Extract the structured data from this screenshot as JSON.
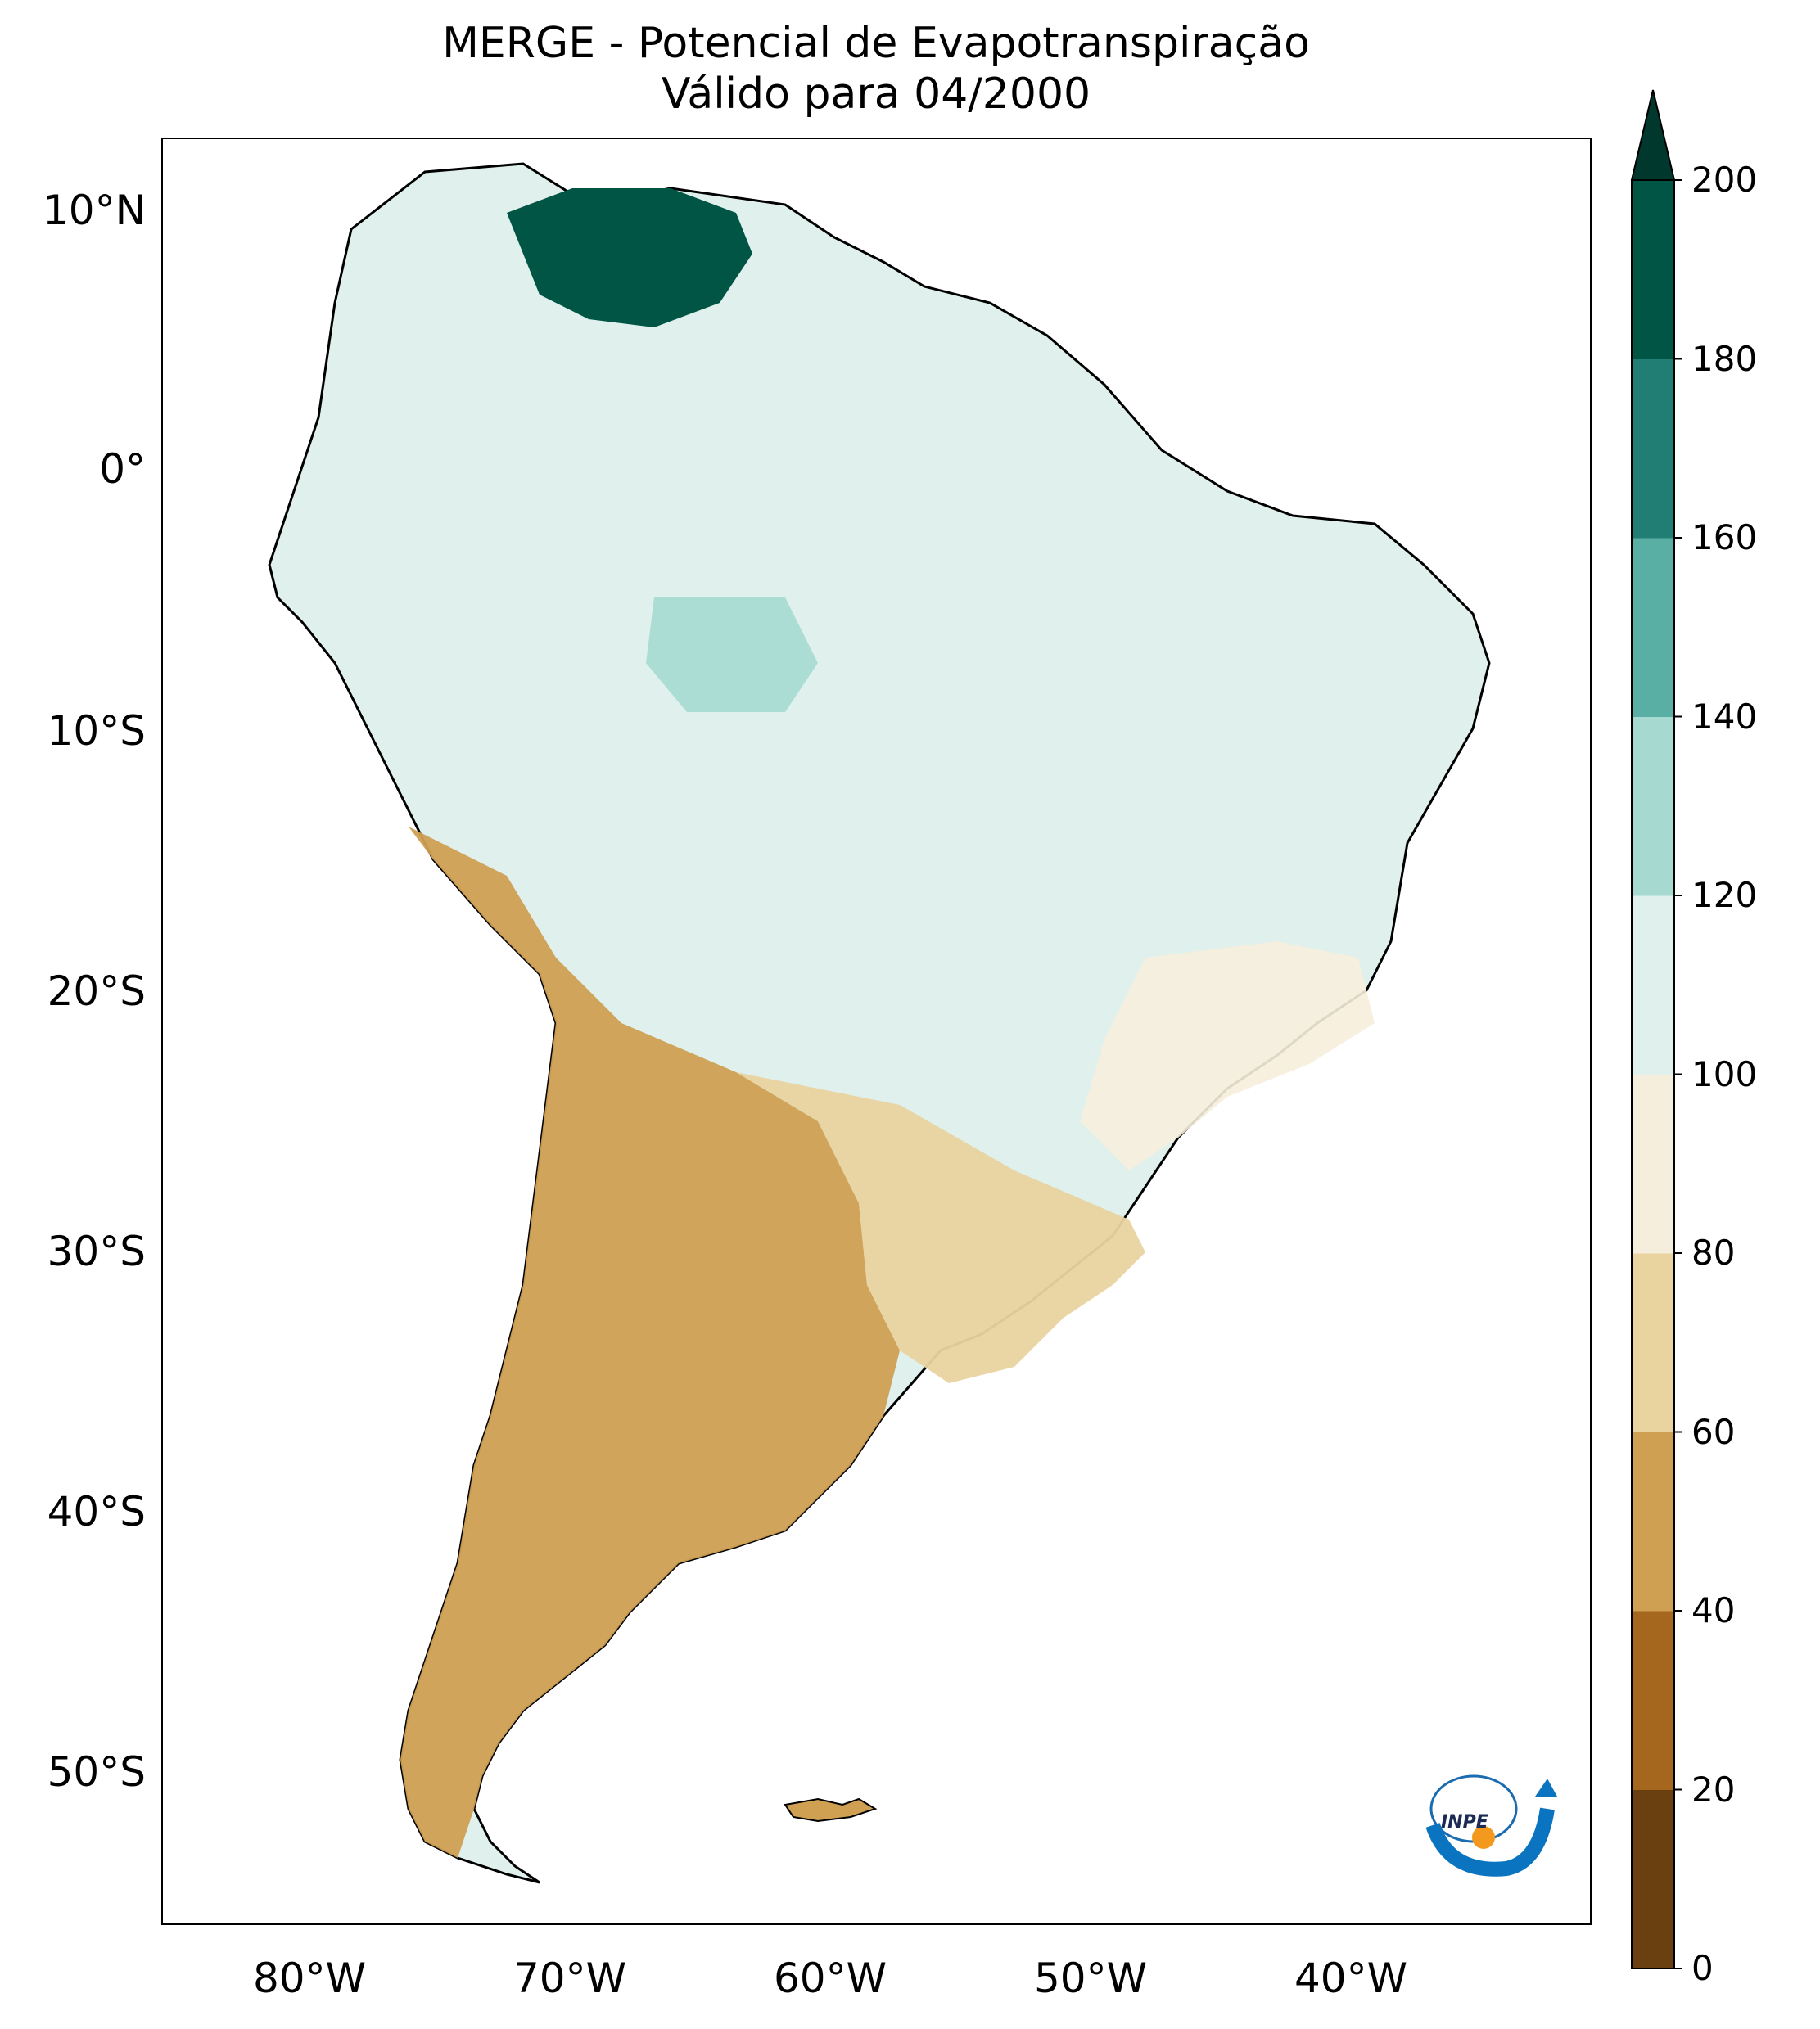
{
  "title": {
    "line1": "MERGE - Potencial de Evapotranspiração",
    "line2": "Válido para 04/2000"
  },
  "map": {
    "lat_labels": [
      "10°N",
      "0°",
      "10°S",
      "20°S",
      "30°S",
      "40°S",
      "50°S"
    ],
    "lon_labels": [
      "80°W",
      "70°W",
      "60°W",
      "50°W",
      "40°W"
    ]
  },
  "colorbar": {
    "ticks": [
      "0",
      "20",
      "40",
      "60",
      "80",
      "100",
      "120",
      "140",
      "160",
      "180",
      "200"
    ],
    "colors": [
      "#6b4010",
      "#a5661d",
      "#cf9f52",
      "#e9d39f",
      "#f6eedc",
      "#dff0ed",
      "#a6dad1",
      "#5aafa4",
      "#207e74",
      "#005545"
    ],
    "extend_color": "#00382d"
  },
  "logo": {
    "text": "INPE"
  }
}
